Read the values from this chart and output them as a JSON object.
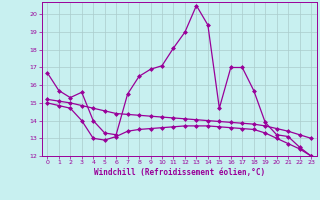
{
  "xlabel": "Windchill (Refroidissement éolien,°C)",
  "background_color": "#c8f0f0",
  "line_color": "#990099",
  "grid_color": "#aacccc",
  "xlim": [
    -0.5,
    23.5
  ],
  "ylim": [
    12,
    20.7
  ],
  "yticks": [
    12,
    13,
    14,
    15,
    16,
    17,
    18,
    19,
    20
  ],
  "xticks": [
    0,
    1,
    2,
    3,
    4,
    5,
    6,
    7,
    8,
    9,
    10,
    11,
    12,
    13,
    14,
    15,
    16,
    17,
    18,
    19,
    20,
    21,
    22,
    23
  ],
  "line1_x": [
    0,
    1,
    2,
    3,
    4,
    5,
    6,
    7,
    8,
    9,
    10,
    11,
    12,
    13,
    14,
    15,
    16,
    17,
    18,
    19,
    20,
    21,
    22,
    23
  ],
  "line1_y": [
    16.7,
    15.7,
    15.3,
    15.6,
    14.0,
    13.3,
    13.2,
    15.5,
    16.5,
    16.9,
    17.1,
    18.1,
    19.0,
    20.5,
    19.4,
    14.7,
    17.0,
    17.0,
    15.7,
    13.9,
    13.2,
    13.1,
    12.5,
    12.0
  ],
  "line2_x": [
    0,
    1,
    2,
    3,
    4,
    5,
    6,
    7,
    8,
    9,
    10,
    11,
    12,
    13,
    14,
    15,
    16,
    17,
    18,
    19,
    20,
    21,
    22,
    23
  ],
  "line2_y": [
    15.2,
    15.1,
    15.0,
    14.85,
    14.7,
    14.55,
    14.4,
    14.35,
    14.3,
    14.25,
    14.2,
    14.15,
    14.1,
    14.05,
    14.0,
    13.95,
    13.9,
    13.85,
    13.8,
    13.7,
    13.55,
    13.4,
    13.2,
    13.0
  ],
  "line3_x": [
    0,
    1,
    2,
    3,
    4,
    5,
    6,
    7,
    8,
    9,
    10,
    11,
    12,
    13,
    14,
    15,
    16,
    17,
    18,
    19,
    20,
    21,
    22,
    23
  ],
  "line3_y": [
    15.0,
    14.85,
    14.7,
    14.0,
    13.0,
    12.9,
    13.1,
    13.4,
    13.5,
    13.55,
    13.6,
    13.65,
    13.7,
    13.7,
    13.7,
    13.65,
    13.6,
    13.55,
    13.5,
    13.3,
    13.0,
    12.7,
    12.4,
    12.0
  ]
}
